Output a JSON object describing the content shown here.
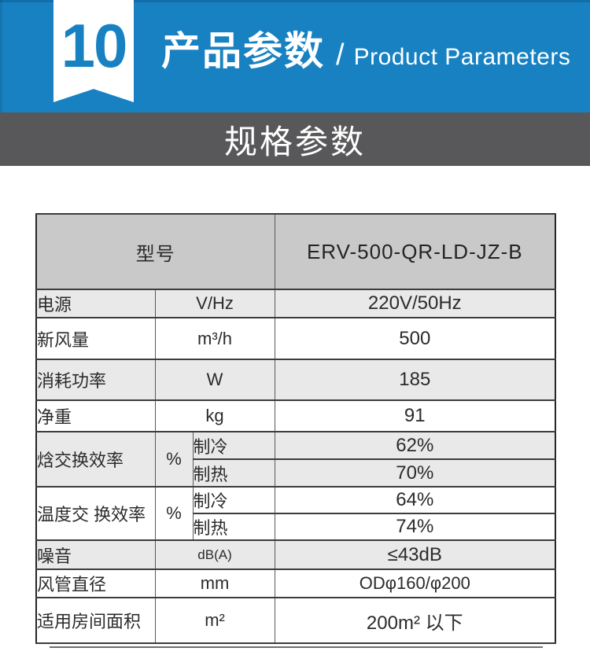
{
  "header": {
    "badge_number": "10",
    "title_cn": "产品参数",
    "separator": "/",
    "title_en": "Product Parameters",
    "accent_blue": "#1781c2"
  },
  "section_bar": {
    "title": "规格参数",
    "bar_color": "#58585a"
  },
  "spec_table": {
    "model_label": "型号",
    "model_value": "ERV-500-QR-LD-JZ-B",
    "rows": [
      {
        "label": "电源",
        "unit": "V/Hz",
        "value": "220V/50Hz"
      },
      {
        "label": "新风量",
        "unit": "m³/h",
        "value": "500"
      },
      {
        "label": "消耗功率",
        "unit": "W",
        "value": "185"
      },
      {
        "label": "净重",
        "unit": "kg",
        "value": "91"
      },
      {
        "label": "焓交换效率",
        "unit": "%",
        "sub": [
          {
            "mode": "制冷",
            "value": "62%"
          },
          {
            "mode": "制热",
            "value": "70%"
          }
        ]
      },
      {
        "label": "温度交 换效率",
        "unit": "%",
        "sub": [
          {
            "mode": "制冷",
            "value": "64%"
          },
          {
            "mode": "制热",
            "value": "74%"
          }
        ]
      },
      {
        "label": "噪音",
        "unit": "dB(A)",
        "value": "≤43dB"
      },
      {
        "label": "风管直径",
        "unit": "mm",
        "value": "ODφ160/φ200"
      },
      {
        "label": "适用房间面积",
        "unit": "m²",
        "value": "200m² 以下"
      }
    ]
  }
}
